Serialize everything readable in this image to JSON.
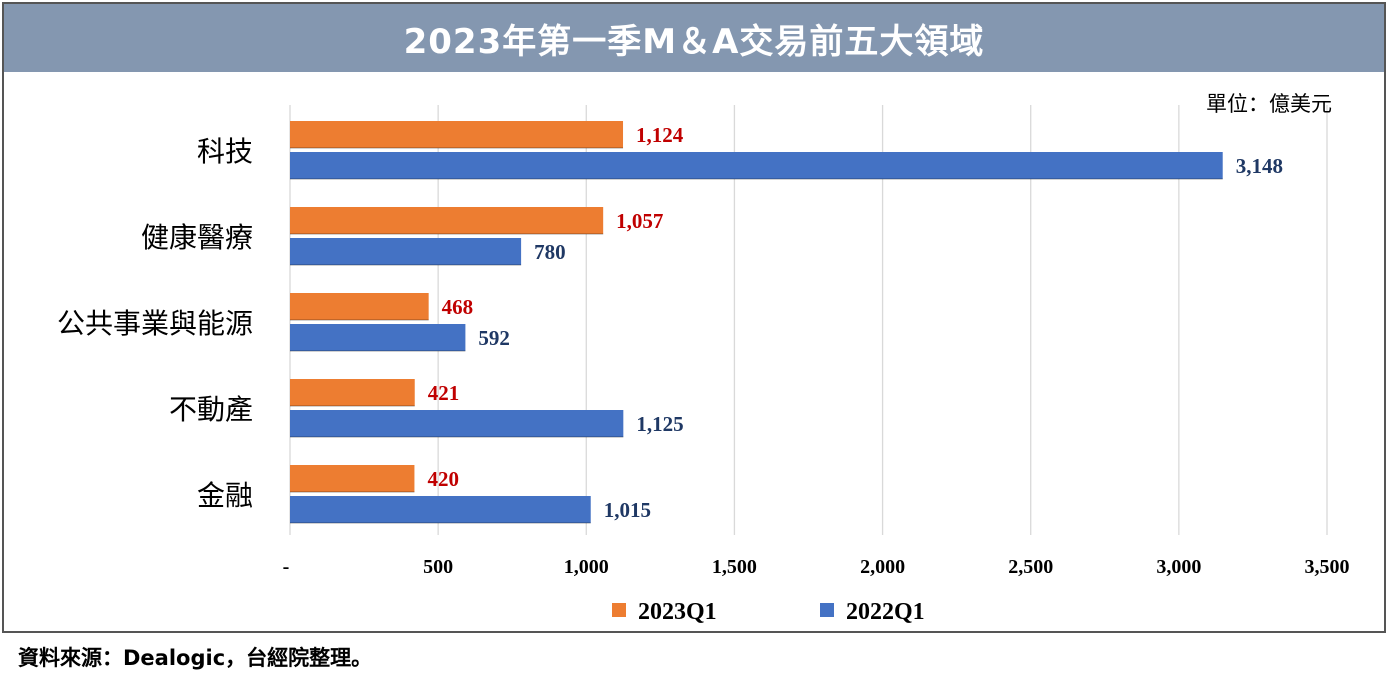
{
  "title": "2023年第一季M＆A交易前五大領域",
  "source": "資料來源：Dealogic，台經院整理。",
  "unit": "單位：億美元",
  "colors": {
    "series_2023": "#ed7d31",
    "series_2022": "#4472c4",
    "label_2023": "#c00000",
    "label_2022": "#1f3864",
    "title_bg": "#8497b0",
    "grid": "#d9d9d9"
  },
  "chart_data": {
    "type": "bar",
    "orientation": "horizontal",
    "categories": [
      "科技",
      "健康醫療",
      "公共事業與能源",
      "不動產",
      "金融"
    ],
    "series": [
      {
        "name": "2023Q1",
        "values": [
          1124,
          1057,
          468,
          421,
          420
        ],
        "labels": [
          "1,124",
          "1,057",
          "468",
          "421",
          "420"
        ]
      },
      {
        "name": "2022Q1",
        "values": [
          3148,
          780,
          592,
          1125,
          1015
        ],
        "labels": [
          "3,148",
          "780",
          "592",
          "1,125",
          "1,015"
        ]
      }
    ],
    "xlim": [
      0,
      3500
    ],
    "xticks": [
      0,
      500,
      1000,
      1500,
      2000,
      2500,
      3000,
      3500
    ],
    "xtick_labels": [
      "-",
      "500",
      "1,000",
      "1,500",
      "2,000",
      "2,500",
      "3,000",
      "3,500"
    ],
    "grid": true,
    "legend": "bottom"
  }
}
